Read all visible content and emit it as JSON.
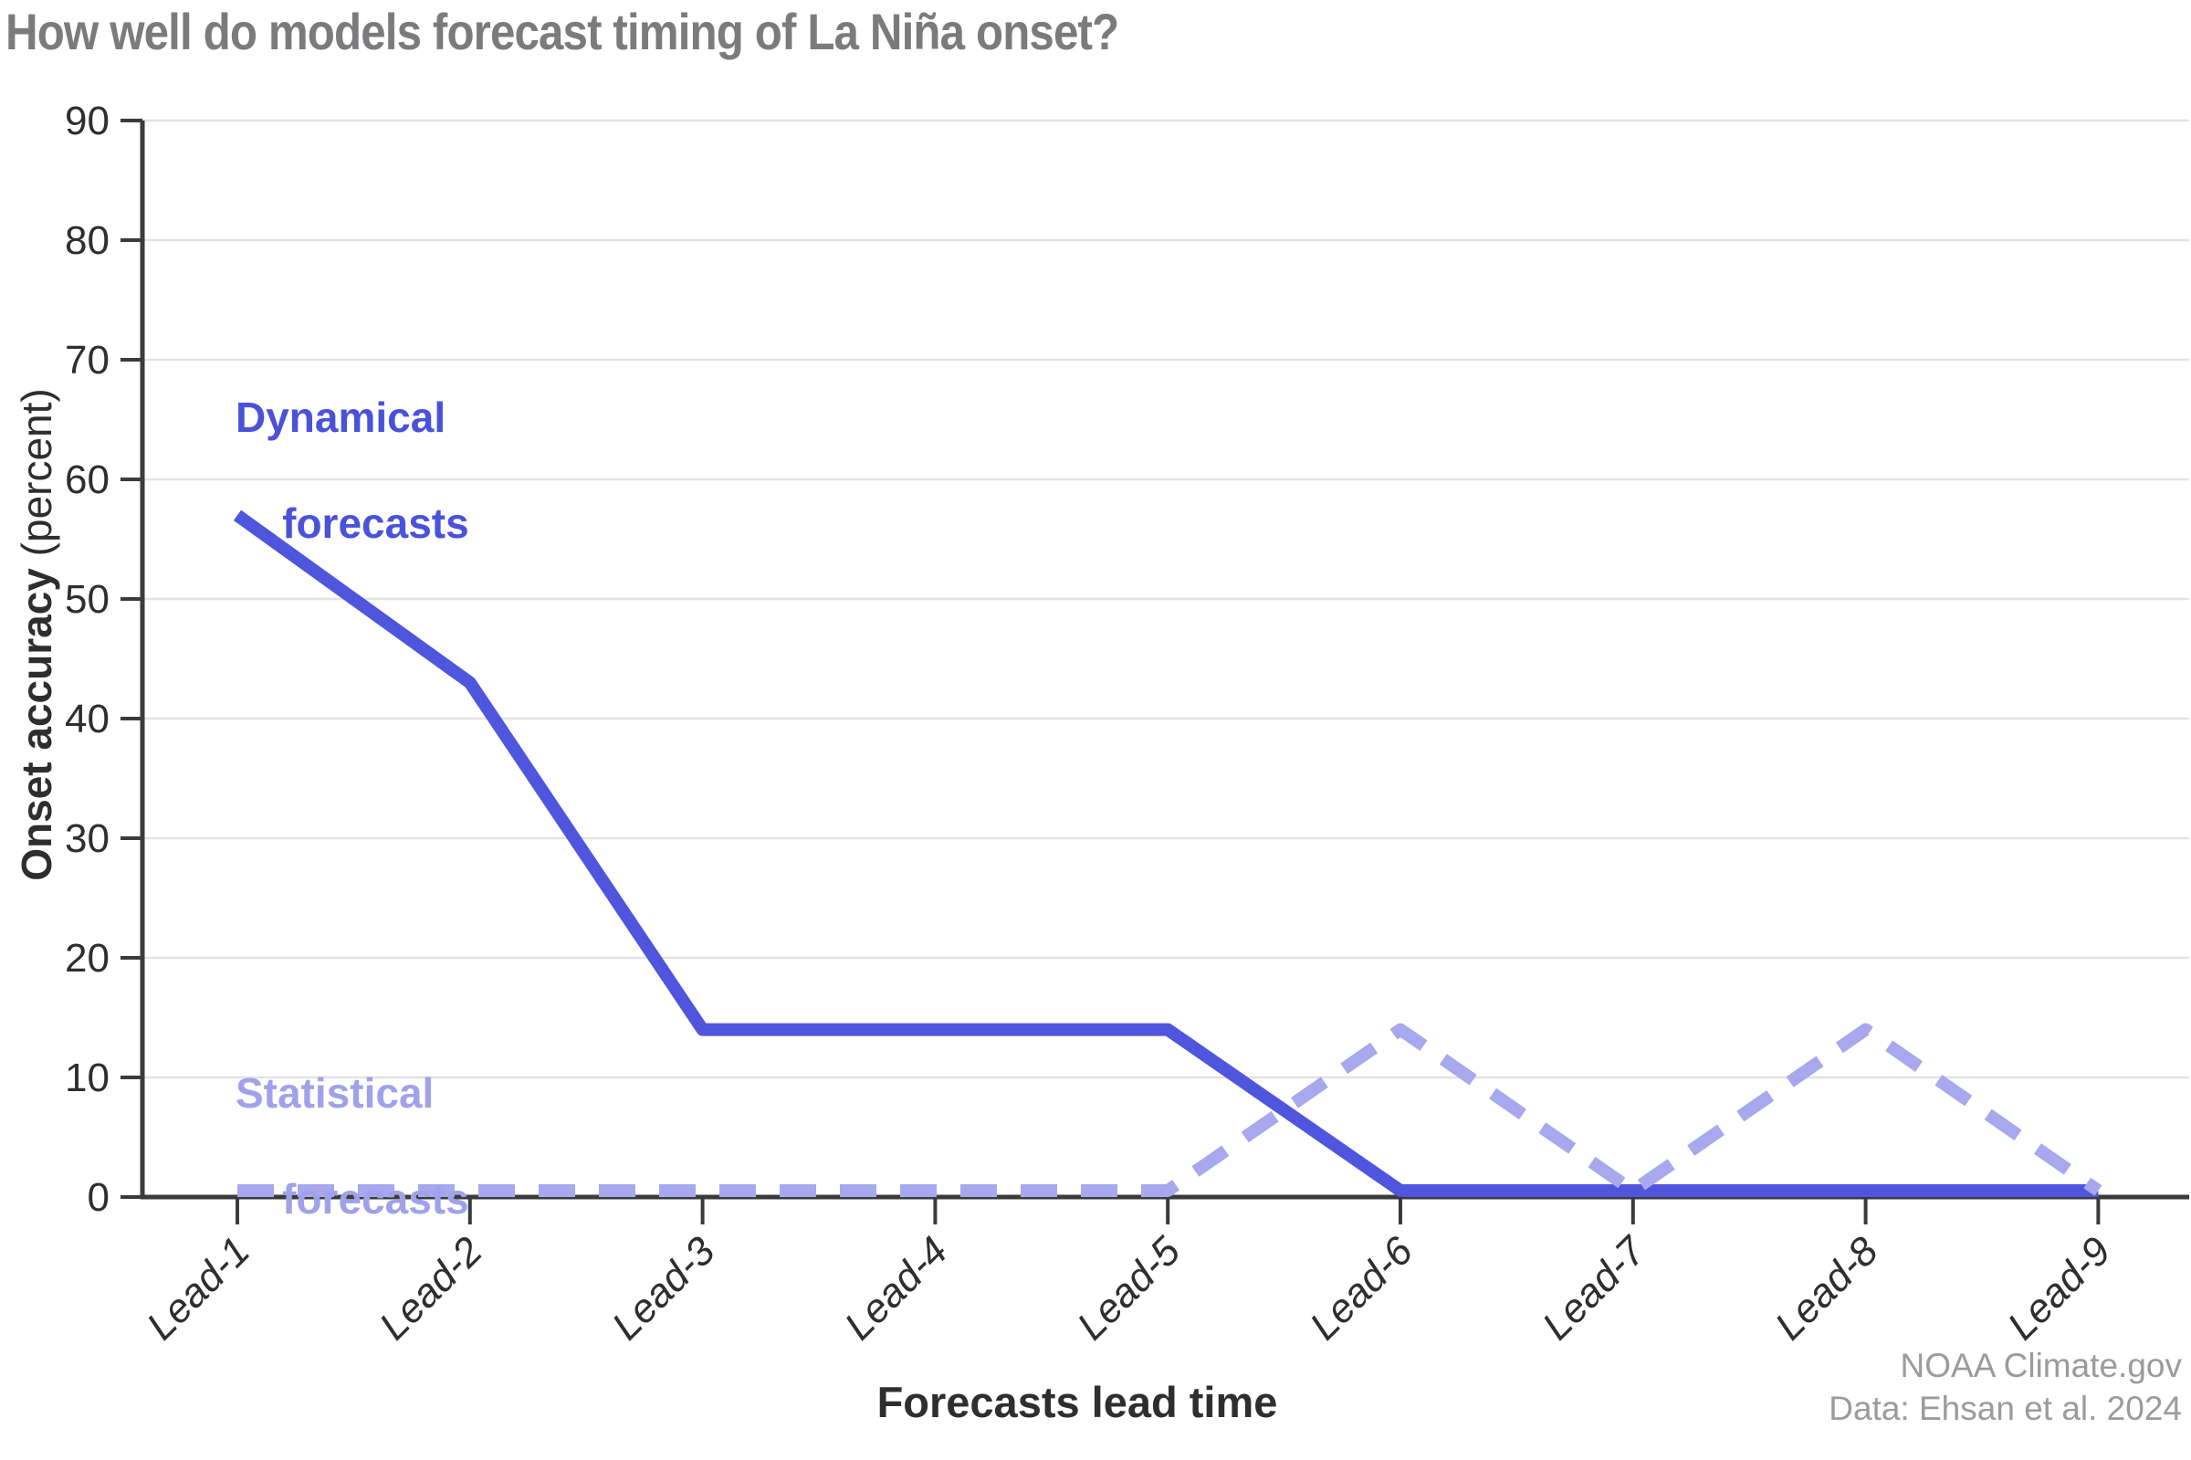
{
  "title": "How well do models forecast timing of La Niña onset?",
  "chart_data": {
    "type": "line",
    "categories": [
      "Lead-1",
      "Lead-2",
      "Lead-3",
      "Lead-4",
      "Lead-5",
      "Lead-6",
      "Lead-7",
      "Lead-8",
      "Lead-9"
    ],
    "series": [
      {
        "name": "Dynamical forecasts",
        "values": [
          57,
          43,
          14,
          14,
          14,
          0,
          0,
          0,
          0
        ],
        "style": "solid",
        "color": "#4f55dc",
        "label_color": "#4a52d9",
        "label_line1": "Dynamical",
        "label_line2": "forecasts"
      },
      {
        "name": "Statistical forecasts",
        "values": [
          0,
          0,
          0,
          0,
          0,
          14,
          0,
          14,
          0
        ],
        "style": "dashed",
        "color": "#a7a8ed",
        "label_color": "#9fa2ea",
        "label_line1": "Statistical",
        "label_line2": "forecasts"
      }
    ],
    "xlabel": "Forecasts lead time",
    "ylabel_bold": "Onset accuracy",
    "ylabel_normal": " (percent)",
    "yticks": [
      0,
      10,
      20,
      30,
      40,
      50,
      60,
      70,
      80,
      90
    ],
    "ylim": [
      0,
      90
    ],
    "grid": true,
    "legend_position": "inline-labels"
  },
  "attribution": {
    "line1": "NOAA Climate.gov",
    "line2": "Data: Ehsan et al. 2024"
  },
  "colors": {
    "title": "#7b7b7e",
    "axis_line": "#3b3b3d",
    "axis_text": "#2e2e30",
    "gridline": "#e3e3e3",
    "dynamical": "#4f55dc",
    "statistical": "#a7a8ed",
    "attribution": "#9b9b9d"
  }
}
